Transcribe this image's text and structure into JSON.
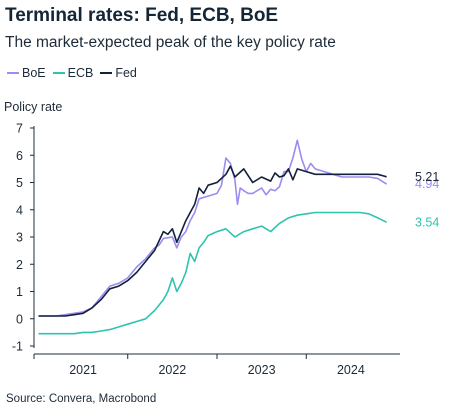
{
  "title": "Terminal rates: Fed, ECB, BoE",
  "subtitle": "The market-expected peak of the key policy rate",
  "source": "Source: Convera, Macrobond",
  "legend": [
    {
      "label": "BoE",
      "color": "#9b8cf0"
    },
    {
      "label": "ECB",
      "color": "#2ec4b0"
    },
    {
      "label": "Fed",
      "color": "#13213b"
    }
  ],
  "chart_data": {
    "type": "line",
    "ylabel": "Policy rate",
    "ylim": [
      -1,
      7
    ],
    "yticks": [
      -1,
      0,
      1,
      2,
      3,
      4,
      5,
      6,
      7
    ],
    "xlim": [
      2020.45,
      2024.55
    ],
    "xticks": [
      {
        "label": "2021",
        "x": 2021.0
      },
      {
        "label": "2022",
        "x": 2022.0
      },
      {
        "label": "2023",
        "x": 2023.0
      },
      {
        "label": "2024",
        "x": 2024.0
      }
    ],
    "grid": false,
    "legend_position": "top-left",
    "series": [
      {
        "name": "BoE",
        "color": "#9b8cf0",
        "end_label": "4.94",
        "x": [
          2020.5,
          2020.6,
          2020.7,
          2020.8,
          2020.9,
          2021.0,
          2021.1,
          2021.2,
          2021.3,
          2021.4,
          2021.5,
          2021.6,
          2021.7,
          2021.8,
          2021.85,
          2021.9,
          2022.0,
          2022.05,
          2022.1,
          2022.15,
          2022.2,
          2022.25,
          2022.3,
          2022.4,
          2022.5,
          2022.55,
          2022.6,
          2022.65,
          2022.7,
          2022.73,
          2022.76,
          2022.8,
          2022.85,
          2022.9,
          2023.0,
          2023.05,
          2023.1,
          2023.15,
          2023.2,
          2023.25,
          2023.3,
          2023.35,
          2023.4,
          2023.45,
          2023.5,
          2023.55,
          2023.6,
          2023.7,
          2023.8,
          2023.9,
          2024.0,
          2024.1,
          2024.2,
          2024.3,
          2024.4
        ],
        "y": [
          0.1,
          0.1,
          0.1,
          0.15,
          0.2,
          0.25,
          0.4,
          0.8,
          1.2,
          1.3,
          1.5,
          1.9,
          2.2,
          2.6,
          2.7,
          2.95,
          3.0,
          2.6,
          3.0,
          3.2,
          3.6,
          3.9,
          4.4,
          4.5,
          4.6,
          4.9,
          5.9,
          5.7,
          5.1,
          4.2,
          4.8,
          4.7,
          4.6,
          4.6,
          4.8,
          4.55,
          4.75,
          4.7,
          4.85,
          5.4,
          5.4,
          5.9,
          6.55,
          5.85,
          5.4,
          5.7,
          5.5,
          5.4,
          5.3,
          5.2,
          5.2,
          5.2,
          5.2,
          5.15,
          4.94
        ]
      },
      {
        "name": "ECB",
        "color": "#2ec4b0",
        "end_label": "3.54",
        "x": [
          2020.5,
          2020.6,
          2020.7,
          2020.8,
          2020.9,
          2021.0,
          2021.1,
          2021.2,
          2021.3,
          2021.4,
          2021.5,
          2021.6,
          2021.7,
          2021.8,
          2021.9,
          2021.95,
          2022.0,
          2022.05,
          2022.1,
          2022.15,
          2022.2,
          2022.25,
          2022.3,
          2022.35,
          2022.4,
          2022.5,
          2022.6,
          2022.7,
          2022.8,
          2022.9,
          2023.0,
          2023.1,
          2023.2,
          2023.3,
          2023.4,
          2023.5,
          2023.6,
          2023.7,
          2023.8,
          2023.9,
          2024.0,
          2024.1,
          2024.2,
          2024.3,
          2024.4
        ],
        "y": [
          -0.55,
          -0.55,
          -0.55,
          -0.55,
          -0.55,
          -0.5,
          -0.5,
          -0.45,
          -0.4,
          -0.3,
          -0.2,
          -0.1,
          0.0,
          0.3,
          0.7,
          1.0,
          1.5,
          1.0,
          1.3,
          1.7,
          2.4,
          2.1,
          2.6,
          2.8,
          3.05,
          3.2,
          3.3,
          3.0,
          3.2,
          3.3,
          3.4,
          3.2,
          3.5,
          3.7,
          3.8,
          3.85,
          3.9,
          3.9,
          3.9,
          3.9,
          3.9,
          3.9,
          3.85,
          3.7,
          3.54
        ]
      },
      {
        "name": "Fed",
        "color": "#13213b",
        "end_label": "5.21",
        "x": [
          2020.5,
          2020.6,
          2020.7,
          2020.8,
          2020.9,
          2021.0,
          2021.1,
          2021.2,
          2021.3,
          2021.4,
          2021.5,
          2021.6,
          2021.7,
          2021.8,
          2021.9,
          2021.95,
          2022.0,
          2022.05,
          2022.1,
          2022.15,
          2022.2,
          2022.25,
          2022.3,
          2022.35,
          2022.4,
          2022.5,
          2022.6,
          2022.65,
          2022.7,
          2022.8,
          2022.9,
          2023.0,
          2023.1,
          2023.15,
          2023.2,
          2023.25,
          2023.3,
          2023.35,
          2023.4,
          2023.5,
          2023.6,
          2023.7,
          2023.8,
          2023.9,
          2024.0,
          2024.1,
          2024.2,
          2024.3,
          2024.4
        ],
        "y": [
          0.1,
          0.1,
          0.1,
          0.1,
          0.15,
          0.2,
          0.4,
          0.7,
          1.1,
          1.2,
          1.4,
          1.7,
          2.1,
          2.5,
          3.2,
          3.1,
          3.3,
          2.8,
          3.2,
          3.6,
          3.9,
          4.2,
          4.8,
          4.6,
          4.9,
          5.0,
          5.3,
          5.6,
          5.2,
          5.5,
          5.0,
          5.2,
          5.05,
          5.35,
          5.2,
          5.25,
          5.5,
          5.1,
          5.5,
          5.4,
          5.3,
          5.3,
          5.3,
          5.3,
          5.3,
          5.3,
          5.3,
          5.3,
          5.21
        ]
      }
    ]
  }
}
